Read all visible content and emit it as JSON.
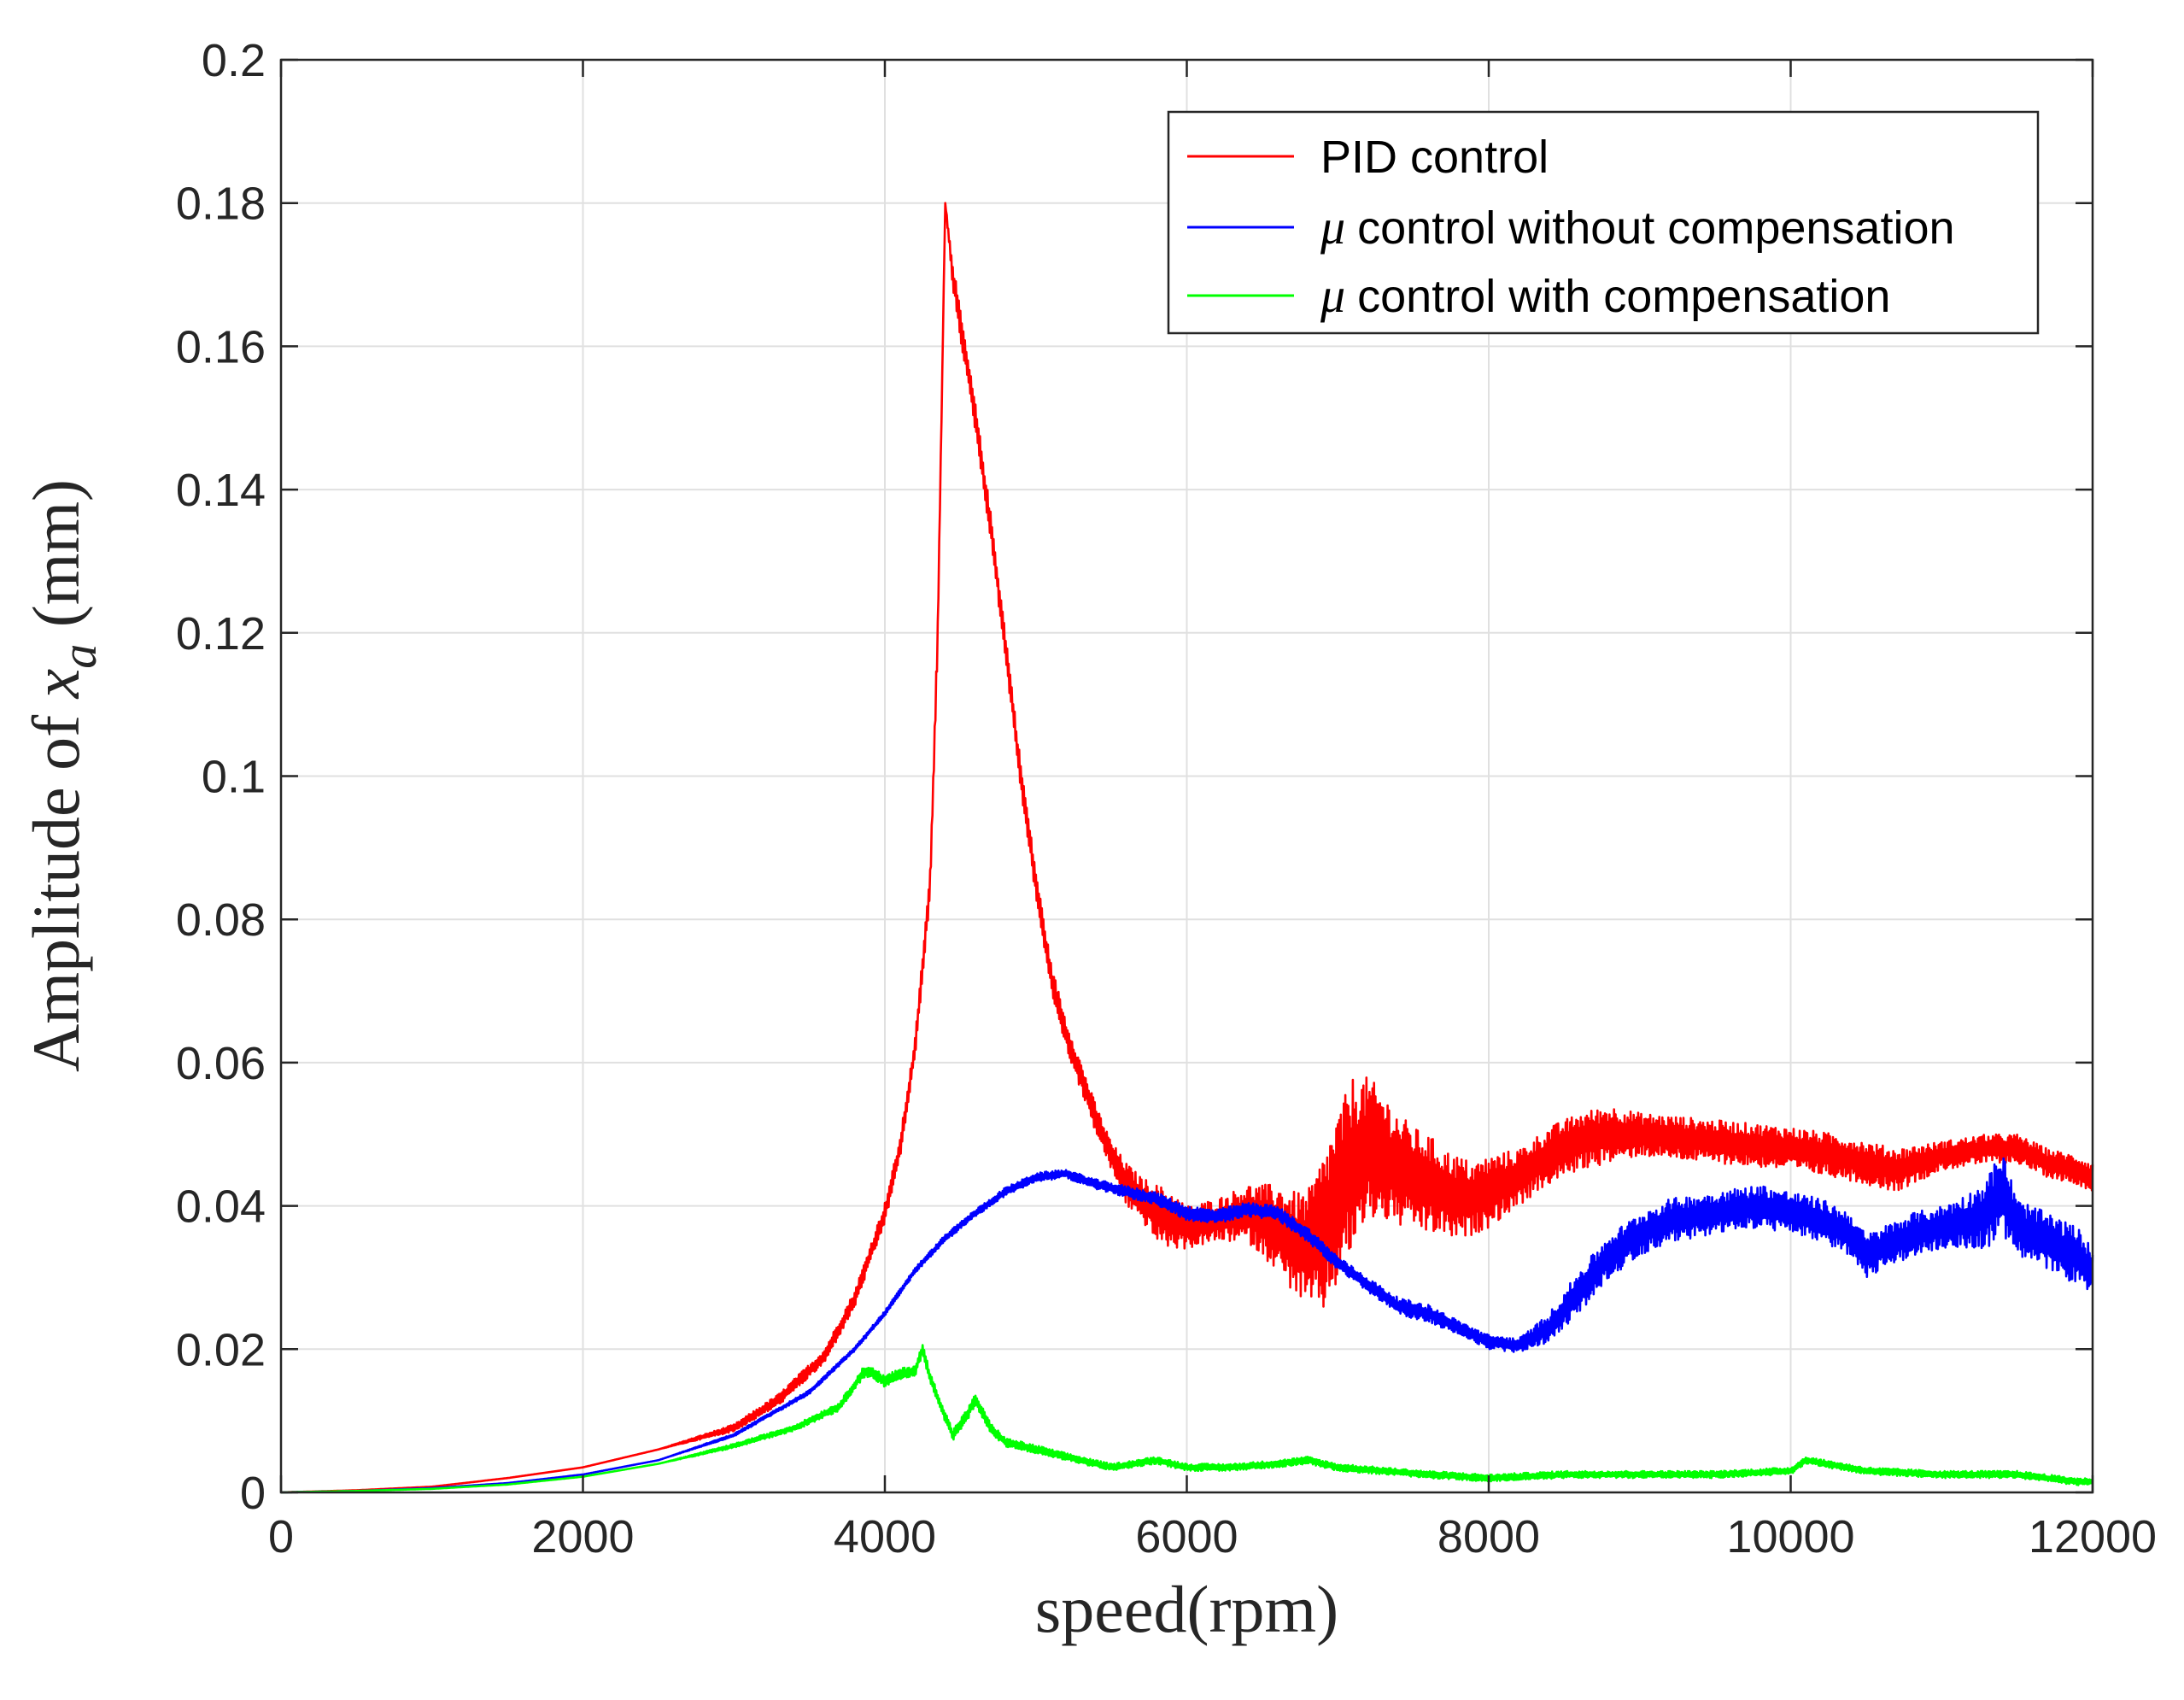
{
  "chart_data": {
    "type": "line",
    "title": "",
    "xlabel": "speed(rpm)",
    "ylabel": {
      "prefix": "Amplitude of ",
      "var": "x",
      "sub": "a",
      "suffix": " (mm)"
    },
    "xlim": [
      0,
      12000
    ],
    "ylim": [
      0,
      0.2
    ],
    "grid": true,
    "legend_position": "top-right",
    "x_ticks": [
      0,
      2000,
      4000,
      6000,
      8000,
      10000,
      12000
    ],
    "x_tick_labels": [
      "0",
      "2000",
      "4000",
      "6000",
      "8000",
      "10000",
      "12000"
    ],
    "y_ticks": [
      0,
      0.02,
      0.04,
      0.06,
      0.08,
      0.1,
      0.12,
      0.14,
      0.16,
      0.18,
      0.2
    ],
    "y_tick_labels": [
      "0",
      "0.02",
      "0.04",
      "0.06",
      "0.08",
      "0.1",
      "0.12",
      "0.14",
      "0.16",
      "0.18",
      "0.2"
    ],
    "series": [
      {
        "name": "PID control",
        "legend_mu": "",
        "legend_label": "PID control",
        "color": "#ff0000",
        "x": [
          0,
          500,
          1000,
          1500,
          2000,
          2500,
          3000,
          3300,
          3600,
          3800,
          4000,
          4100,
          4200,
          4300,
          4350,
          4400,
          4450,
          4500,
          4600,
          4700,
          4800,
          4900,
          5000,
          5100,
          5200,
          5300,
          5400,
          5500,
          5600,
          5700,
          5800,
          5900,
          6000,
          6200,
          6400,
          6500,
          6600,
          6700,
          6800,
          6900,
          7000,
          7100,
          7200,
          7300,
          7400,
          7500,
          7600,
          7700,
          7800,
          7900,
          8000,
          8200,
          8400,
          8600,
          8800,
          9000,
          9500,
          10000,
          10300,
          10500,
          10700,
          11000,
          11300,
          11500,
          11700,
          11900,
          12000
        ],
        "values": [
          0,
          0.0003,
          0.0008,
          0.002,
          0.0035,
          0.006,
          0.009,
          0.013,
          0.019,
          0.027,
          0.039,
          0.048,
          0.062,
          0.085,
          0.12,
          0.18,
          0.17,
          0.163,
          0.15,
          0.135,
          0.118,
          0.1,
          0.085,
          0.072,
          0.064,
          0.058,
          0.052,
          0.047,
          0.043,
          0.041,
          0.039,
          0.038,
          0.037,
          0.038,
          0.039,
          0.038,
          0.037,
          0.035,
          0.034,
          0.036,
          0.041,
          0.046,
          0.048,
          0.047,
          0.045,
          0.044,
          0.043,
          0.042,
          0.041,
          0.041,
          0.042,
          0.044,
          0.047,
          0.049,
          0.05,
          0.05,
          0.049,
          0.048,
          0.047,
          0.046,
          0.045,
          0.047,
          0.048,
          0.048,
          0.046,
          0.045,
          0.044
        ],
        "noise": [
          0,
          0,
          0,
          0,
          0,
          0,
          0.0005,
          0.0008,
          0.001,
          0.0012,
          0.0015,
          0.0015,
          0.0015,
          0.002,
          0.002,
          0,
          0.002,
          0.002,
          0.002,
          0.002,
          0.002,
          0.002,
          0.002,
          0.002,
          0.002,
          0.002,
          0.002,
          0.002,
          0.003,
          0.003,
          0.004,
          0.004,
          0.003,
          0.003,
          0.004,
          0.005,
          0.006,
          0.007,
          0.008,
          0.011,
          0.012,
          0.012,
          0.01,
          0.009,
          0.008,
          0.007,
          0.007,
          0.006,
          0.006,
          0.005,
          0.005,
          0.004,
          0.004,
          0.004,
          0.004,
          0.003,
          0.003,
          0.003,
          0.003,
          0.003,
          0.003,
          0.002,
          0.002,
          0.002,
          0.002,
          0.002,
          0.002
        ]
      },
      {
        "name": "μ control without compensation",
        "legend_mu": "μ",
        "legend_label": "control without compensation",
        "color": "#0000ff",
        "x": [
          0,
          500,
          1000,
          1500,
          2000,
          2500,
          3000,
          3500,
          3800,
          4000,
          4200,
          4400,
          4600,
          4800,
          5000,
          5200,
          5400,
          5600,
          5800,
          6000,
          6200,
          6400,
          6600,
          6800,
          7000,
          7200,
          7400,
          7600,
          7800,
          8000,
          8200,
          8400,
          8600,
          8800,
          9000,
          9200,
          9500,
          9800,
          10000,
          10200,
          10400,
          10500,
          10600,
          10800,
          11000,
          11200,
          11300,
          11400,
          11500,
          11700,
          11900,
          12000
        ],
        "values": [
          0,
          0.0002,
          0.0006,
          0.0013,
          0.0025,
          0.0045,
          0.008,
          0.014,
          0.02,
          0.025,
          0.031,
          0.0355,
          0.039,
          0.042,
          0.044,
          0.0445,
          0.043,
          0.042,
          0.041,
          0.039,
          0.0385,
          0.0395,
          0.039,
          0.036,
          0.032,
          0.029,
          0.026,
          0.025,
          0.023,
          0.021,
          0.0205,
          0.023,
          0.028,
          0.033,
          0.036,
          0.038,
          0.039,
          0.04,
          0.039,
          0.038,
          0.036,
          0.033,
          0.034,
          0.036,
          0.037,
          0.038,
          0.039,
          0.042,
          0.037,
          0.035,
          0.033,
          0.031
        ],
        "noise": [
          0,
          0,
          0,
          0,
          0,
          0,
          0.0002,
          0.0003,
          0.0003,
          0.0004,
          0.0004,
          0.0005,
          0.0005,
          0.0006,
          0.0006,
          0.0006,
          0.0007,
          0.0008,
          0.0009,
          0.001,
          0.001,
          0.001,
          0.001,
          0.001,
          0.001,
          0.001,
          0.0012,
          0.0012,
          0.001,
          0.001,
          0.001,
          0.002,
          0.003,
          0.003,
          0.003,
          0.003,
          0.003,
          0.003,
          0.003,
          0.003,
          0.003,
          0.003,
          0.003,
          0.003,
          0.003,
          0.004,
          0.005,
          0.006,
          0.004,
          0.004,
          0.004,
          0.003
        ]
      },
      {
        "name": "μ control with compensation",
        "legend_mu": "μ",
        "legend_label": "control with compensation",
        "color": "#00ff00",
        "x": [
          0,
          500,
          1000,
          1500,
          2000,
          2500,
          3000,
          3400,
          3700,
          3850,
          3900,
          4000,
          4100,
          4200,
          4250,
          4300,
          4400,
          4450,
          4550,
          4600,
          4700,
          4800,
          5000,
          5200,
          5500,
          5800,
          6000,
          6300,
          6600,
          6800,
          7000,
          7300,
          7600,
          8000,
          8500,
          9000,
          9500,
          10000,
          10100,
          10500,
          11000,
          11500,
          11900,
          12000
        ],
        "values": [
          0,
          0.0002,
          0.0005,
          0.0011,
          0.0022,
          0.004,
          0.0065,
          0.009,
          0.012,
          0.0165,
          0.017,
          0.0155,
          0.0165,
          0.017,
          0.02,
          0.016,
          0.0105,
          0.008,
          0.011,
          0.013,
          0.009,
          0.007,
          0.006,
          0.005,
          0.0035,
          0.0045,
          0.0035,
          0.0035,
          0.004,
          0.0045,
          0.0035,
          0.003,
          0.0025,
          0.002,
          0.0025,
          0.0025,
          0.0025,
          0.003,
          0.0045,
          0.003,
          0.0025,
          0.0025,
          0.0015,
          0.0015
        ],
        "noise": [
          0,
          0,
          0,
          0,
          0,
          0,
          0.0003,
          0.0004,
          0.0006,
          0.0008,
          0.0008,
          0.0008,
          0.0008,
          0.0008,
          0.0008,
          0.0008,
          0.0008,
          0.0008,
          0.0008,
          0.0008,
          0.0007,
          0.0006,
          0.0006,
          0.0005,
          0.0005,
          0.0005,
          0.0005,
          0.0005,
          0.0005,
          0.0005,
          0.0005,
          0.0005,
          0.0005,
          0.0005,
          0.0005,
          0.0005,
          0.0005,
          0.0005,
          0.0005,
          0.0005,
          0.0005,
          0.0005,
          0.0005,
          0.0005
        ]
      }
    ]
  }
}
